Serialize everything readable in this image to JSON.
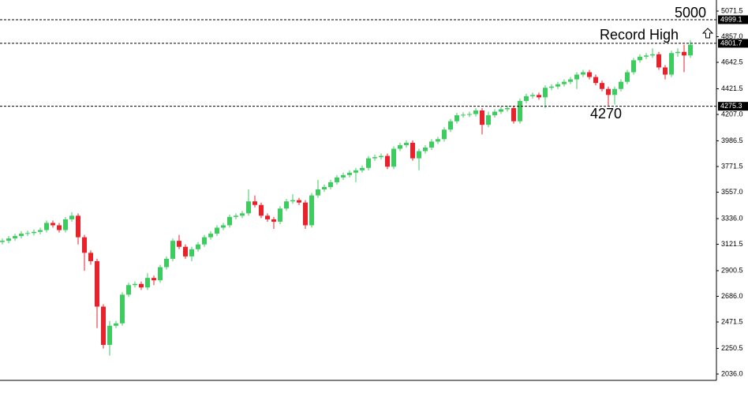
{
  "chart_data": {
    "type": "candlestick",
    "up_color": "#3ecb5f",
    "down_color": "#e8222a",
    "ylim": [
      2036.0,
      5071.5
    ],
    "yticks": [
      5071.5,
      {
        "value": 4857.0,
        "label": "4857.0"
      },
      4642.5,
      4421.5,
      {
        "value": 4207.0,
        "label": "4207.0"
      },
      3986.5,
      3771.5,
      {
        "value": 3557.0,
        "label": "3557.0"
      },
      {
        "value": 3336.0,
        "label": "3336.0"
      },
      3121.5,
      2900.5,
      {
        "value": 2686.0,
        "label": "2686.0"
      },
      2471.5,
      2250.5,
      {
        "value": 2036.0,
        "label": "2036.0"
      }
    ],
    "levels": [
      4999.1,
      4801.7,
      4275.3
    ],
    "annotations": [
      "5000",
      "Record High",
      "4270"
    ],
    "open": [
      3140,
      3150,
      3170,
      3190,
      3210,
      3215,
      3225,
      3240,
      3300,
      3280,
      3240,
      3330,
      3360,
      3180,
      3050,
      2980,
      2600,
      2280,
      2440,
      2460,
      2700,
      2780,
      2790,
      2760,
      2840,
      2820,
      2930,
      3000,
      3150,
      3100,
      3020,
      3080,
      3120,
      3180,
      3210,
      3260,
      3280,
      3350,
      3360,
      3380,
      3480,
      3450,
      3360,
      3330,
      3310,
      3420,
      3480,
      3490,
      3470,
      3280,
      3530,
      3580,
      3600,
      3640,
      3680,
      3700,
      3720,
      3740,
      3760,
      3840,
      3850,
      3860,
      3770,
      3920,
      3950,
      3970,
      3840,
      3900,
      3930,
      3980,
      4000,
      4080,
      4150,
      4200,
      4205,
      4210,
      4240,
      4120,
      4200,
      4230,
      4250,
      4260,
      4150,
      4320,
      4360,
      4370,
      4350,
      4430,
      4440,
      4460,
      4480,
      4500,
      4540,
      4560,
      4520,
      4470,
      4420,
      4370,
      4420,
      4480,
      4560,
      4660,
      4690,
      4700,
      4710,
      4600,
      4540,
      4720,
      4730,
      4700
    ],
    "high": [
      3170,
      3190,
      3210,
      3230,
      3235,
      3245,
      3260,
      3320,
      3320,
      3300,
      3350,
      3390,
      3380,
      3200,
      3070,
      3000,
      2620,
      2480,
      2480,
      2720,
      2800,
      2810,
      2810,
      2880,
      2860,
      2950,
      3020,
      3170,
      3200,
      3120,
      3100,
      3140,
      3200,
      3230,
      3280,
      3300,
      3370,
      3380,
      3400,
      3580,
      3530,
      3470,
      3380,
      3350,
      3440,
      3500,
      3540,
      3510,
      3490,
      3550,
      3660,
      3620,
      3660,
      3700,
      3720,
      3740,
      3760,
      3780,
      3860,
      3870,
      3880,
      3880,
      3940,
      3970,
      3990,
      3990,
      3920,
      3950,
      4000,
      4020,
      4100,
      4170,
      4220,
      4225,
      4230,
      4260,
      4260,
      4230,
      4250,
      4270,
      4280,
      4280,
      4340,
      4380,
      4390,
      4390,
      4450,
      4460,
      4480,
      4500,
      4520,
      4560,
      4580,
      4580,
      4540,
      4490,
      4440,
      4440,
      4500,
      4580,
      4680,
      4710,
      4720,
      4760,
      4730,
      4620,
      4740,
      4760,
      4790,
      4830
    ],
    "low": [
      3120,
      3130,
      3150,
      3170,
      3190,
      3195,
      3205,
      3220,
      3260,
      3220,
      3220,
      3310,
      3120,
      2900,
      2950,
      2420,
      2250,
      2190,
      2420,
      2440,
      2680,
      2760,
      2740,
      2740,
      2780,
      2800,
      2910,
      2980,
      3080,
      3000,
      2980,
      3060,
      3100,
      3160,
      3190,
      3240,
      3260,
      3330,
      3340,
      3360,
      3430,
      3340,
      3310,
      3250,
      3290,
      3400,
      3460,
      3450,
      3250,
      3260,
      3510,
      3560,
      3580,
      3620,
      3660,
      3680,
      3640,
      3720,
      3740,
      3820,
      3830,
      3750,
      3750,
      3900,
      3930,
      3820,
      3740,
      3880,
      3910,
      3960,
      3980,
      4060,
      4130,
      4180,
      4185,
      4190,
      4040,
      4100,
      4180,
      4210,
      4230,
      4130,
      4130,
      4300,
      4340,
      4330,
      4260,
      4410,
      4420,
      4440,
      4460,
      4420,
      4520,
      4500,
      4450,
      4400,
      4280,
      4290,
      4400,
      4460,
      4540,
      4640,
      4670,
      4680,
      4580,
      4500,
      4520,
      4690,
      4560,
      4680
    ],
    "close": [
      3150,
      3170,
      3190,
      3210,
      3215,
      3225,
      3240,
      3300,
      3280,
      3240,
      3330,
      3360,
      3180,
      3050,
      2980,
      2600,
      2280,
      2440,
      2460,
      2700,
      2780,
      2790,
      2760,
      2840,
      2820,
      2930,
      3000,
      3150,
      3100,
      3020,
      3080,
      3120,
      3180,
      3210,
      3260,
      3280,
      3350,
      3360,
      3380,
      3480,
      3450,
      3360,
      3330,
      3310,
      3420,
      3480,
      3490,
      3470,
      3280,
      3530,
      3580,
      3600,
      3640,
      3680,
      3700,
      3720,
      3740,
      3760,
      3840,
      3850,
      3860,
      3770,
      3920,
      3950,
      3970,
      3840,
      3900,
      3930,
      3980,
      4000,
      4080,
      4150,
      4200,
      4205,
      4210,
      4240,
      4120,
      4200,
      4230,
      4250,
      4260,
      4150,
      4320,
      4360,
      4370,
      4350,
      4430,
      4440,
      4460,
      4480,
      4500,
      4540,
      4560,
      4520,
      4470,
      4420,
      4370,
      4420,
      4480,
      4560,
      4660,
      4690,
      4700,
      4710,
      4600,
      4540,
      4720,
      4730,
      4700,
      4790
    ]
  }
}
